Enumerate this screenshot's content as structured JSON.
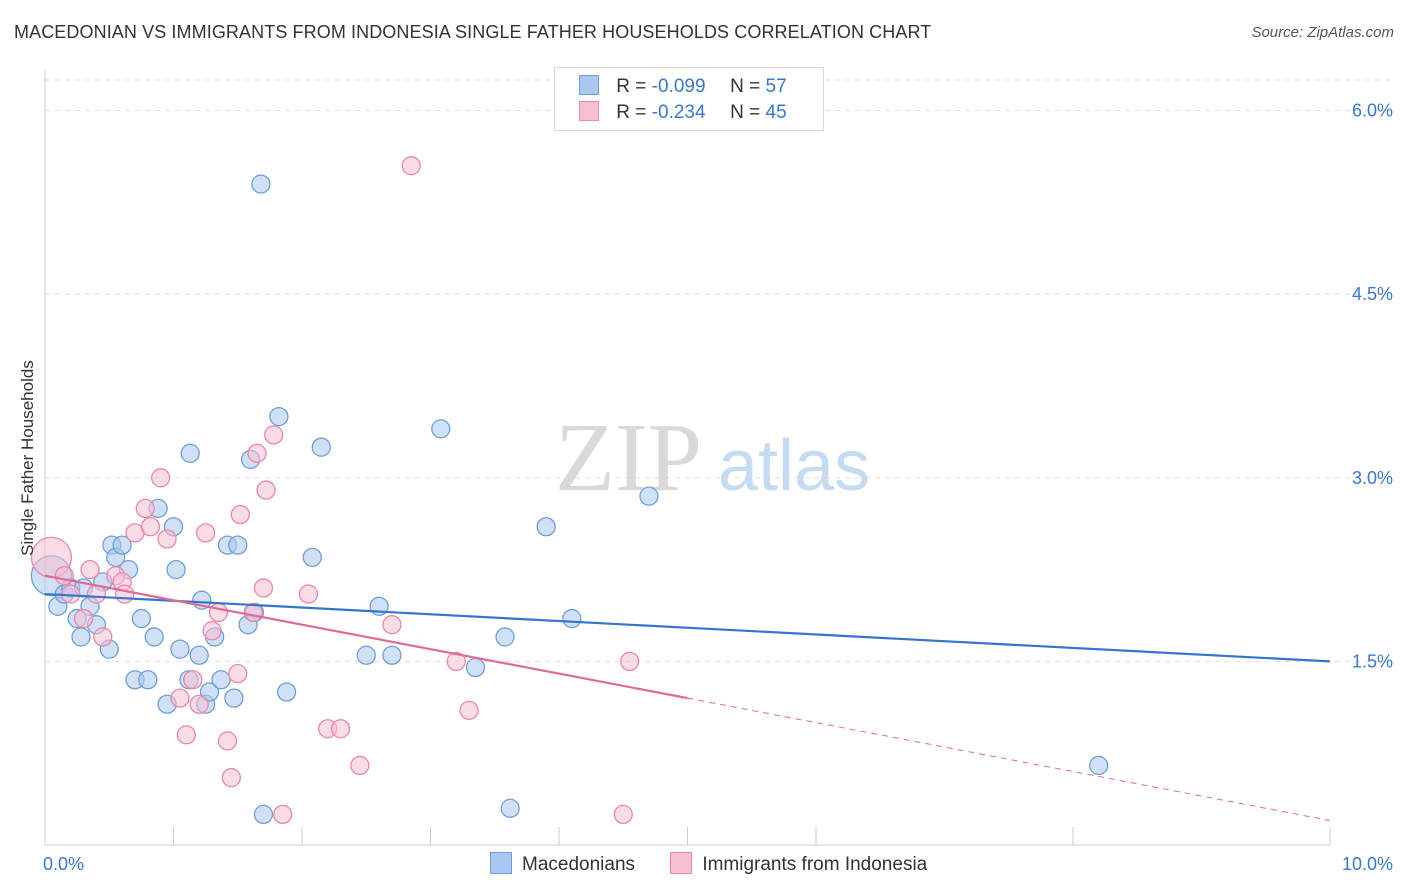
{
  "title": "MACEDONIAN VS IMMIGRANTS FROM INDONESIA SINGLE FATHER HOUSEHOLDS CORRELATION CHART",
  "source": "Source: ZipAtlas.com",
  "watermark": {
    "zip": "ZIP",
    "atlas": "atlas"
  },
  "legend": {
    "rows": [
      {
        "r_label": "R =",
        "r_value": "-0.099",
        "n_label": "N =",
        "n_value": "57"
      },
      {
        "r_label": "R =",
        "r_value": "-0.234",
        "n_label": "N =",
        "n_value": "45"
      }
    ]
  },
  "bottom_legend": {
    "series1": "Macedonians",
    "series2": "Immigrants from Indonesia"
  },
  "colors": {
    "blue_fill": "#a9c8ef",
    "blue_stroke": "#6f9fd8",
    "blue_line": "#3575cc",
    "pink_fill": "#f6bfd2",
    "pink_stroke": "#e888aa",
    "pink_line": "#e06a97",
    "tick_text": "#3a78c9",
    "grid": "#dddddd"
  },
  "chart_data": {
    "type": "scatter",
    "title": "MACEDONIAN VS IMMIGRANTS FROM INDONESIA SINGLE FATHER HOUSEHOLDS CORRELATION CHART",
    "xlabel": "",
    "ylabel": "Single Father Households",
    "xlim": [
      0,
      10
    ],
    "ylim": [
      0,
      6.25
    ],
    "x_tick_labels": [
      "0.0%",
      "10.0%"
    ],
    "y_ticks": [
      1.5,
      3.0,
      4.5,
      6.0
    ],
    "y_tick_labels": [
      "1.5%",
      "3.0%",
      "4.5%",
      "6.0%"
    ],
    "series": [
      {
        "name": "Macedonians",
        "r": -0.099,
        "n": 57,
        "trend": {
          "x0": 0,
          "y0": 2.05,
          "x1": 10,
          "y1": 1.5,
          "solid_until": 10
        },
        "points": [
          [
            0.05,
            2.2,
            20
          ],
          [
            0.1,
            1.95,
            9
          ],
          [
            0.15,
            2.05,
            9
          ],
          [
            0.2,
            2.1,
            9
          ],
          [
            0.25,
            1.85,
            9
          ],
          [
            0.28,
            1.7,
            9
          ],
          [
            0.3,
            2.1,
            9
          ],
          [
            0.35,
            1.95,
            9
          ],
          [
            0.4,
            1.8,
            9
          ],
          [
            0.45,
            2.15,
            9
          ],
          [
            0.5,
            1.6,
            9
          ],
          [
            0.52,
            2.45,
            9
          ],
          [
            0.55,
            2.35,
            9
          ],
          [
            0.6,
            2.45,
            9
          ],
          [
            0.65,
            2.25,
            9
          ],
          [
            0.7,
            1.35,
            9
          ],
          [
            0.75,
            1.85,
            9
          ],
          [
            0.8,
            1.35,
            9
          ],
          [
            0.85,
            1.7,
            9
          ],
          [
            0.88,
            2.75,
            9
          ],
          [
            0.95,
            1.15,
            9
          ],
          [
            1.0,
            2.6,
            9
          ],
          [
            1.02,
            2.25,
            9
          ],
          [
            1.05,
            1.6,
            9
          ],
          [
            1.12,
            1.35,
            9
          ],
          [
            1.13,
            3.2,
            9
          ],
          [
            1.2,
            1.55,
            9
          ],
          [
            1.22,
            2.0,
            9
          ],
          [
            1.25,
            1.15,
            9
          ],
          [
            1.28,
            1.25,
            9
          ],
          [
            1.32,
            1.7,
            9
          ],
          [
            1.37,
            1.35,
            9
          ],
          [
            1.42,
            2.45,
            9
          ],
          [
            1.47,
            1.2,
            9
          ],
          [
            1.5,
            2.45,
            9
          ],
          [
            1.58,
            1.8,
            9
          ],
          [
            1.6,
            3.15,
            9
          ],
          [
            1.63,
            1.9,
            9
          ],
          [
            1.68,
            5.4,
            9
          ],
          [
            1.7,
            0.25,
            9
          ],
          [
            1.82,
            3.5,
            9
          ],
          [
            1.88,
            1.25,
            9
          ],
          [
            2.08,
            2.35,
            9
          ],
          [
            2.15,
            3.25,
            9
          ],
          [
            2.5,
            1.55,
            9
          ],
          [
            2.6,
            1.95,
            9
          ],
          [
            2.7,
            1.55,
            9
          ],
          [
            3.08,
            3.4,
            9
          ],
          [
            3.35,
            1.45,
            9
          ],
          [
            3.58,
            1.7,
            9
          ],
          [
            3.62,
            0.3,
            9
          ],
          [
            3.9,
            2.6,
            9
          ],
          [
            4.1,
            1.85,
            9
          ],
          [
            4.7,
            2.85,
            9
          ],
          [
            8.2,
            0.65,
            9
          ]
        ]
      },
      {
        "name": "Immigrants from Indonesia",
        "r": -0.234,
        "n": 45,
        "trend": {
          "x0": 0,
          "y0": 2.2,
          "x1": 10,
          "y1": 0.2,
          "solid_until": 5.0
        },
        "points": [
          [
            0.05,
            2.35,
            20
          ],
          [
            0.15,
            2.2,
            9
          ],
          [
            0.2,
            2.05,
            9
          ],
          [
            0.3,
            1.85,
            9
          ],
          [
            0.35,
            2.25,
            9
          ],
          [
            0.4,
            2.05,
            9
          ],
          [
            0.45,
            1.7,
            9
          ],
          [
            0.55,
            2.2,
            9
          ],
          [
            0.6,
            2.15,
            9
          ],
          [
            0.62,
            2.05,
            9
          ],
          [
            0.7,
            2.55,
            9
          ],
          [
            0.78,
            2.75,
            9
          ],
          [
            0.82,
            2.6,
            9
          ],
          [
            0.9,
            3.0,
            9
          ],
          [
            0.95,
            2.5,
            9
          ],
          [
            1.05,
            1.2,
            9
          ],
          [
            1.1,
            0.9,
            9
          ],
          [
            1.15,
            1.35,
            9
          ],
          [
            1.2,
            1.15,
            9
          ],
          [
            1.25,
            2.55,
            9
          ],
          [
            1.3,
            1.75,
            9
          ],
          [
            1.35,
            1.9,
            9
          ],
          [
            1.42,
            0.85,
            9
          ],
          [
            1.45,
            0.55,
            9
          ],
          [
            1.5,
            1.4,
            9
          ],
          [
            1.52,
            2.7,
            9
          ],
          [
            1.62,
            1.9,
            9
          ],
          [
            1.65,
            3.2,
            9
          ],
          [
            1.7,
            2.1,
            9
          ],
          [
            1.72,
            2.9,
            9
          ],
          [
            1.78,
            3.35,
            9
          ],
          [
            1.85,
            0.25,
            9
          ],
          [
            2.05,
            2.05,
            9
          ],
          [
            2.2,
            0.95,
            9
          ],
          [
            2.3,
            0.95,
            9
          ],
          [
            2.45,
            0.65,
            9
          ],
          [
            2.7,
            1.8,
            9
          ],
          [
            2.85,
            5.55,
            9
          ],
          [
            3.2,
            1.5,
            9
          ],
          [
            3.3,
            1.1,
            9
          ],
          [
            4.5,
            0.25,
            9
          ],
          [
            4.55,
            1.5,
            9
          ]
        ]
      }
    ]
  }
}
